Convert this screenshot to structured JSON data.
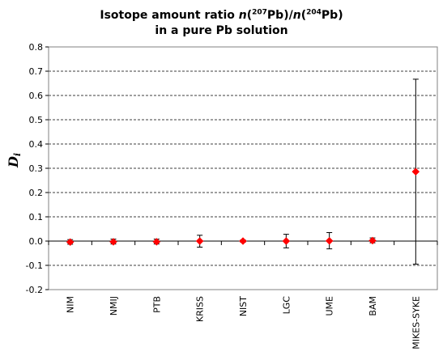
{
  "chart_data": {
    "type": "scatter",
    "title": {
      "line1_prefix": "Isotope amount ratio ",
      "n": "n",
      "open": "(",
      "mass_a": "207",
      "elem": "Pb",
      "close_slash": ")/",
      "mass_b": "204",
      "close": ")",
      "line2": "in a pure Pb solution"
    },
    "ylabel": {
      "main": "D",
      "sub": "i"
    },
    "ylim": [
      -0.2,
      0.8
    ],
    "ytick_labels": [
      "-0.2",
      "-0.1",
      "0.0",
      "0.1",
      "0.2",
      "0.3",
      "0.4",
      "0.5",
      "0.6",
      "0.7",
      "0.8"
    ],
    "yticks": [
      -0.2,
      -0.1,
      0.0,
      0.1,
      0.2,
      0.3,
      0.4,
      0.5,
      0.6,
      0.7,
      0.8
    ],
    "grid": "horizontal dashed",
    "categories": [
      "NIM",
      "NMIJ",
      "PTB",
      "KRISS",
      "NIST",
      "LGC",
      "UME",
      "BAM",
      "MIKES-SYKE"
    ],
    "values": [
      -0.004,
      -0.003,
      -0.003,
      0.0,
      0.0,
      0.0,
      0.001,
      0.002,
      0.286
    ],
    "err_low": [
      -0.013,
      -0.012,
      -0.012,
      -0.025,
      -0.005,
      -0.028,
      -0.032,
      -0.007,
      -0.095
    ],
    "err_high": [
      0.006,
      0.008,
      0.008,
      0.024,
      0.005,
      0.028,
      0.035,
      0.013,
      0.667
    ],
    "marker": "diamond",
    "marker_color": "#ff0000",
    "errorbar_color": "#000000",
    "grid_color": "#000000",
    "axis_color": "#808080"
  }
}
